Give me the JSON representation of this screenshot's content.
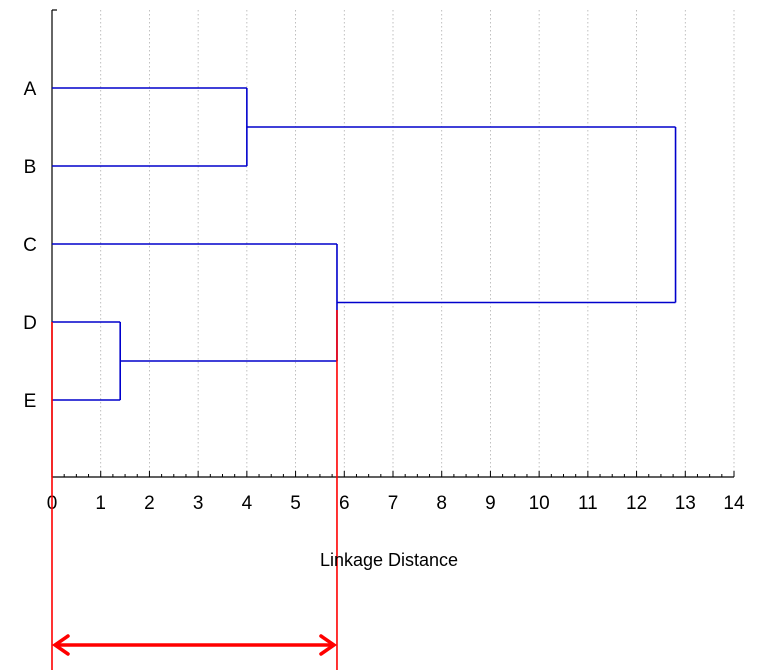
{
  "chart_data": {
    "type": "dendrogram",
    "orientation": "horizontal",
    "title": "",
    "xlabel": "Linkage Distance",
    "ylabel": "",
    "xlim": [
      0,
      14
    ],
    "x_ticks": [
      0,
      1,
      2,
      3,
      4,
      5,
      6,
      7,
      8,
      9,
      10,
      11,
      12,
      13,
      14
    ],
    "x_tick_labels": [
      "0",
      "1",
      "2",
      "3",
      "4",
      "5",
      "6",
      "7",
      "8",
      "9",
      "10",
      "11",
      "12",
      "13",
      "14"
    ],
    "minor_tick_step": 0.25,
    "grid": "vertical dotted at each integer",
    "leaves": [
      "A",
      "B",
      "C",
      "D",
      "E"
    ],
    "merges": [
      {
        "id": "DE",
        "left": "D",
        "right": "E",
        "height": 1.4
      },
      {
        "id": "AB",
        "left": "A",
        "right": "B",
        "height": 4.0
      },
      {
        "id": "CDE",
        "left": "C",
        "right": "DE",
        "height": 5.85
      },
      {
        "id": "ABCDE",
        "left": "AB",
        "right": "CDE",
        "height": 12.8
      }
    ],
    "annotation": {
      "type": "double-arrow",
      "from": 0,
      "to": 5.85,
      "color": "#ff0000"
    },
    "colors": {
      "tree": "#0000cc",
      "annotation": "#ff0000",
      "axis": "#000000",
      "grid": "#b0b0b0"
    }
  }
}
